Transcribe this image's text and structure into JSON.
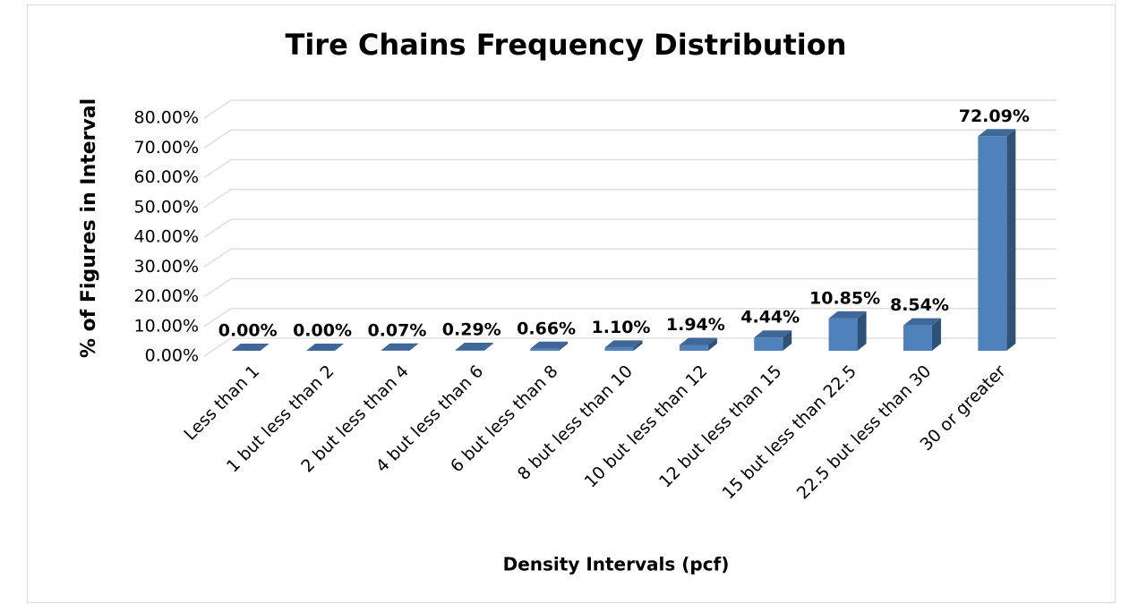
{
  "chart_data": {
    "type": "bar3d",
    "title": "Tire Chains Frequency Distribution",
    "x_label": "Density Intervals (pcf)",
    "y_label": "% of Figures in Interval",
    "categories": [
      "Less than 1",
      "1 but less than 2",
      "2 but less than 4",
      "4 but less than 6",
      "6 but less than 8",
      "8 but less than 10",
      "10 but less than 12",
      "12 but less than 15",
      "15 but less than 22.5",
      "22.5 but less than 30",
      "30 or greater"
    ],
    "values": [
      0,
      0,
      0.07,
      0.29,
      0.66,
      1.1,
      1.94,
      4.44,
      10.85,
      8.54,
      72.09
    ],
    "value_labels": [
      "0.00%",
      "0.00%",
      "0.07%",
      "0.29%",
      "0.66%",
      "1.10%",
      "1.94%",
      "4.44%",
      "10.85%",
      "8.54%",
      "72.09%"
    ],
    "color": "#4f81bd",
    "ylim": [
      0,
      80
    ],
    "yticks": [
      {
        "value": 0,
        "label": "0.00%"
      },
      {
        "value": 10,
        "label": "10.00%"
      },
      {
        "value": 20,
        "label": "20.00%"
      },
      {
        "value": 30,
        "label": "30.00%"
      },
      {
        "value": 40,
        "label": "40.00%"
      },
      {
        "value": 50,
        "label": "50.00%"
      },
      {
        "value": 60,
        "label": "60.00%"
      },
      {
        "value": 70,
        "label": "70.00%"
      },
      {
        "value": 80,
        "label": "80.00%"
      }
    ],
    "grid": true
  }
}
